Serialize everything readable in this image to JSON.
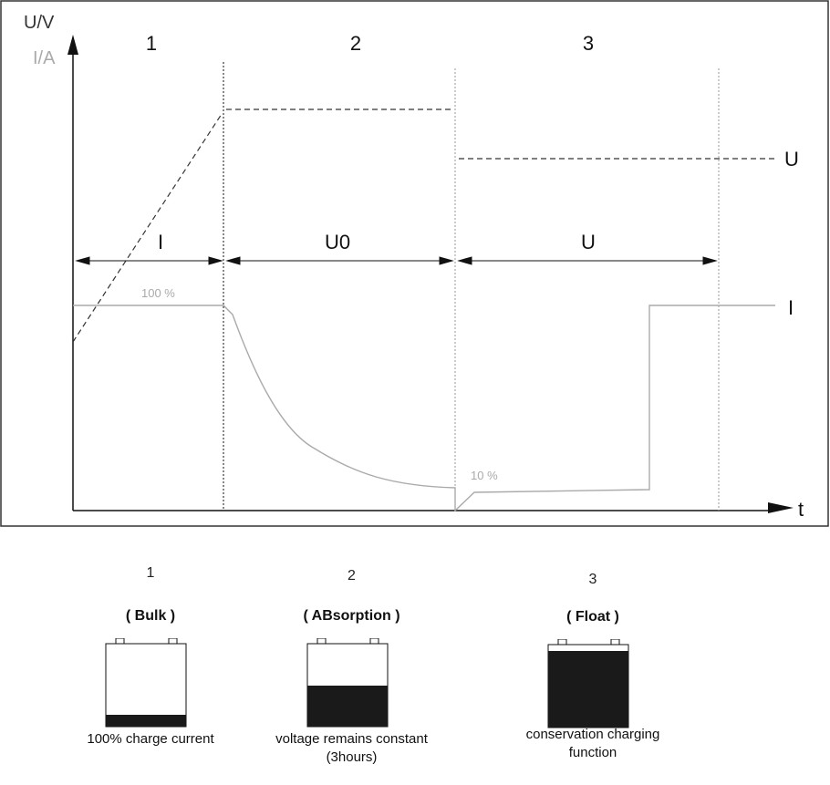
{
  "axes": {
    "y_label_voltage": "U/V",
    "y_label_current": "I/A",
    "x_label": "t"
  },
  "phases": [
    {
      "number": "1",
      "range_label": "I"
    },
    {
      "number": "2",
      "range_label": "U0"
    },
    {
      "number": "3",
      "range_label": "U"
    }
  ],
  "curve_labels": {
    "voltage": "U",
    "current": "I",
    "current_full": "100 %",
    "current_low": "10 %"
  },
  "stages": [
    {
      "number": "1",
      "name": "( Bulk )",
      "description": [
        "100% charge current"
      ],
      "fill_level": 0.16
    },
    {
      "number": "2",
      "name": "( ABsorption )",
      "description": [
        "voltage remains constant",
        "(3hours)"
      ],
      "fill_level": 0.54
    },
    {
      "number": "3",
      "name": "( Float )",
      "description": [
        "conservation charging",
        "function"
      ],
      "fill_level": 1.0
    }
  ],
  "colors": {
    "voltage": "#333333",
    "current": "#aaaaaa",
    "battery_fill": "#1a1a1a"
  }
}
